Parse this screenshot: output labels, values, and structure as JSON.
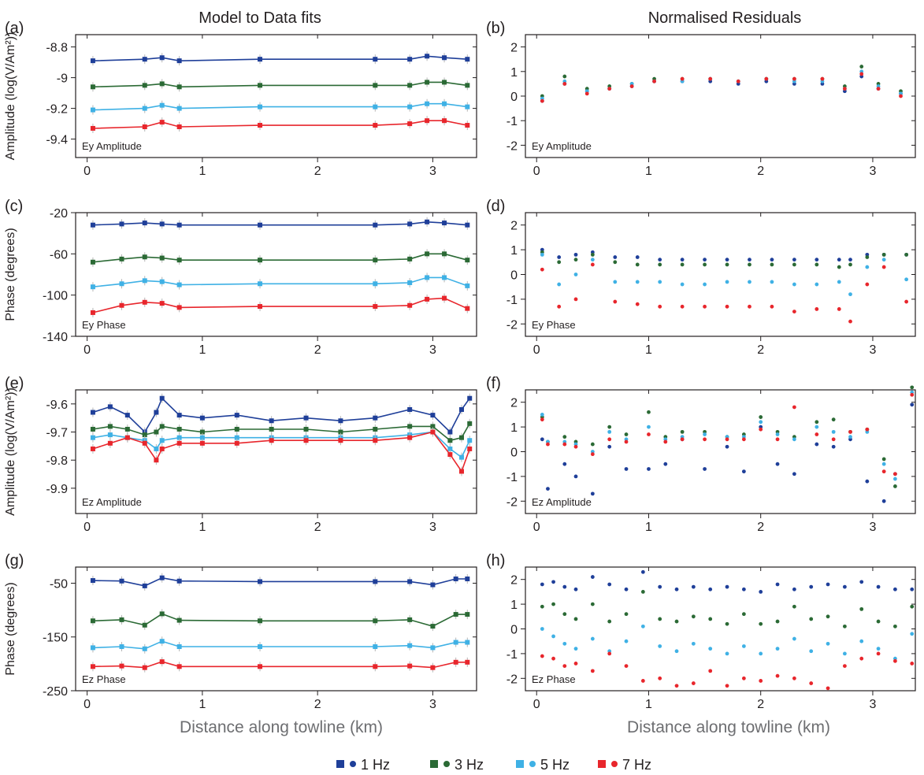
{
  "colors": {
    "1 Hz": "#1f3f99",
    "3 Hz": "#2b6a35",
    "5 Hz": "#3fb1e5",
    "7 Hz": "#e8262c",
    "error_bar": "#b5b5b5",
    "axis": "#231f20"
  },
  "column_titles": {
    "left": "Model to Data fits",
    "right": "Normalised Residuals"
  },
  "xlabel": "Distance along towline (km)",
  "legend": [
    {
      "name": "1 Hz",
      "color": "#1f3f99"
    },
    {
      "name": "3 Hz",
      "color": "#2b6a35"
    },
    {
      "name": "5 Hz",
      "color": "#3fb1e5"
    },
    {
      "name": "7 Hz",
      "color": "#e8262c"
    }
  ],
  "chart_data": [
    {
      "id": "a",
      "panel_label": "(a)",
      "type": "line",
      "annotation": "Ey Amplitude",
      "ylabel": "Amplitude (log(V/Am²))",
      "xlim": [
        -0.1,
        3.38
      ],
      "ylim": [
        -9.52,
        -8.72
      ],
      "yticks": [
        -8.8,
        -9,
        -9.2,
        -9.4
      ],
      "xticks": [
        0,
        1,
        2,
        3
      ],
      "x": [
        0.05,
        0.5,
        0.65,
        0.8,
        1.5,
        2.5,
        2.8,
        2.95,
        3.1,
        3.3
      ],
      "series": [
        {
          "name": "1 Hz",
          "values": [
            -8.89,
            -8.88,
            -8.87,
            -8.89,
            -8.88,
            -8.88,
            -8.88,
            -8.86,
            -8.87,
            -8.88
          ]
        },
        {
          "name": "3 Hz",
          "values": [
            -9.06,
            -9.05,
            -9.04,
            -9.06,
            -9.05,
            -9.05,
            -9.05,
            -9.03,
            -9.03,
            -9.05
          ]
        },
        {
          "name": "5 Hz",
          "values": [
            -9.21,
            -9.2,
            -9.18,
            -9.2,
            -9.19,
            -9.19,
            -9.19,
            -9.17,
            -9.17,
            -9.19
          ]
        },
        {
          "name": "7 Hz",
          "values": [
            -9.33,
            -9.32,
            -9.29,
            -9.32,
            -9.31,
            -9.31,
            -9.3,
            -9.28,
            -9.28,
            -9.31
          ]
        }
      ]
    },
    {
      "id": "b",
      "panel_label": "(b)",
      "type": "scatter",
      "annotation": "Ey Amplitude",
      "xlim": [
        -0.1,
        3.38
      ],
      "ylim": [
        -2.5,
        2.5
      ],
      "yticks": [
        2,
        1,
        0,
        -1,
        -2
      ],
      "xticks": [
        0,
        1,
        2,
        3
      ],
      "x": [
        0.05,
        0.25,
        0.45,
        0.65,
        0.85,
        1.05,
        1.3,
        1.55,
        1.8,
        2.05,
        2.3,
        2.55,
        2.75,
        2.9,
        3.05,
        3.25
      ],
      "series": [
        {
          "name": "1 Hz",
          "values": [
            -0.2,
            0.5,
            0.2,
            0.3,
            0.4,
            0.6,
            0.6,
            0.6,
            0.5,
            0.6,
            0.5,
            0.5,
            0.2,
            0.8,
            0.3,
            0.1
          ]
        },
        {
          "name": "3 Hz",
          "values": [
            0.0,
            0.8,
            0.3,
            0.4,
            0.5,
            0.7,
            0.7,
            0.7,
            0.6,
            0.7,
            0.7,
            0.7,
            0.4,
            1.2,
            0.5,
            0.2
          ]
        },
        {
          "name": "5 Hz",
          "values": [
            -0.1,
            0.6,
            0.2,
            0.3,
            0.5,
            0.6,
            0.6,
            0.7,
            0.6,
            0.7,
            0.6,
            0.6,
            0.3,
            1.0,
            0.4,
            0.1
          ]
        },
        {
          "name": "7 Hz",
          "values": [
            -0.2,
            0.5,
            0.1,
            0.3,
            0.4,
            0.6,
            0.7,
            0.7,
            0.6,
            0.7,
            0.7,
            0.7,
            0.3,
            0.9,
            0.3,
            0.0
          ]
        }
      ]
    },
    {
      "id": "c",
      "panel_label": "(c)",
      "type": "line",
      "annotation": "Ey Phase",
      "ylabel": "Phase (degrees)",
      "xlim": [
        -0.1,
        3.38
      ],
      "ylim": [
        -140,
        -20
      ],
      "yticks": [
        -20,
        -60,
        -100,
        -140
      ],
      "xticks": [
        0,
        1,
        2,
        3
      ],
      "x": [
        0.05,
        0.3,
        0.5,
        0.65,
        0.8,
        1.5,
        2.5,
        2.8,
        2.95,
        3.1,
        3.3
      ],
      "series": [
        {
          "name": "1 Hz",
          "values": [
            -32,
            -31,
            -30,
            -31,
            -32,
            -32,
            -32,
            -31,
            -29,
            -30,
            -32
          ]
        },
        {
          "name": "3 Hz",
          "values": [
            -68,
            -65,
            -63,
            -64,
            -66,
            -66,
            -66,
            -65,
            -60,
            -60,
            -66
          ]
        },
        {
          "name": "5 Hz",
          "values": [
            -92,
            -89,
            -86,
            -87,
            -90,
            -89,
            -89,
            -88,
            -83,
            -83,
            -91
          ]
        },
        {
          "name": "7 Hz",
          "values": [
            -117,
            -110,
            -107,
            -108,
            -112,
            -111,
            -111,
            -110,
            -104,
            -103,
            -113
          ]
        }
      ]
    },
    {
      "id": "d",
      "panel_label": "(d)",
      "type": "scatter",
      "annotation": "Ey Phase",
      "xlim": [
        -0.1,
        3.38
      ],
      "ylim": [
        -2.5,
        2.5
      ],
      "yticks": [
        2,
        1,
        0,
        -1,
        -2
      ],
      "xticks": [
        0,
        1,
        2,
        3
      ],
      "x": [
        0.05,
        0.2,
        0.35,
        0.5,
        0.7,
        0.9,
        1.1,
        1.3,
        1.5,
        1.7,
        1.9,
        2.1,
        2.3,
        2.5,
        2.7,
        2.8,
        2.95,
        3.1,
        3.3
      ],
      "series": [
        {
          "name": "1 Hz",
          "values": [
            1.0,
            0.7,
            0.8,
            0.9,
            0.7,
            0.7,
            0.6,
            0.6,
            0.6,
            0.6,
            0.6,
            0.6,
            0.6,
            0.6,
            0.6,
            0.6,
            0.8,
            0.8,
            0.8
          ]
        },
        {
          "name": "3 Hz",
          "values": [
            0.9,
            0.5,
            0.6,
            0.8,
            0.5,
            0.4,
            0.4,
            0.4,
            0.4,
            0.4,
            0.4,
            0.4,
            0.4,
            0.4,
            0.3,
            0.4,
            0.7,
            0.8,
            0.8
          ]
        },
        {
          "name": "5 Hz",
          "values": [
            0.8,
            -0.4,
            0.0,
            0.6,
            -0.3,
            -0.3,
            -0.3,
            -0.4,
            -0.4,
            -0.3,
            -0.3,
            -0.3,
            -0.4,
            -0.4,
            -0.3,
            -0.8,
            0.3,
            0.6,
            -0.2
          ]
        },
        {
          "name": "7 Hz",
          "values": [
            0.2,
            -1.3,
            -1.0,
            0.4,
            -1.1,
            -1.2,
            -1.3,
            -1.3,
            -1.3,
            -1.3,
            -1.3,
            -1.3,
            -1.5,
            -1.4,
            -1.4,
            -1.9,
            -0.4,
            0.3,
            -1.1
          ]
        }
      ]
    },
    {
      "id": "e",
      "panel_label": "(e)",
      "type": "line",
      "annotation": "Ez Amplitude",
      "ylabel": "Amplitude (log(V/Am²))",
      "xlim": [
        -0.1,
        3.38
      ],
      "ylim": [
        -9.99,
        -9.55
      ],
      "yticks": [
        -9.6,
        -9.7,
        -9.8,
        -9.9
      ],
      "xticks": [
        0,
        1,
        2,
        3
      ],
      "x": [
        0.05,
        0.2,
        0.35,
        0.5,
        0.6,
        0.65,
        0.8,
        1.0,
        1.3,
        1.6,
        1.9,
        2.2,
        2.5,
        2.8,
        3.0,
        3.15,
        3.25,
        3.32
      ],
      "series": [
        {
          "name": "1 Hz",
          "values": [
            -9.63,
            -9.61,
            -9.64,
            -9.7,
            -9.63,
            -9.58,
            -9.64,
            -9.65,
            -9.64,
            -9.66,
            -9.65,
            -9.66,
            -9.65,
            -9.62,
            -9.64,
            -9.7,
            -9.62,
            -9.58
          ]
        },
        {
          "name": "3 Hz",
          "values": [
            -9.69,
            -9.68,
            -9.69,
            -9.71,
            -9.7,
            -9.68,
            -9.69,
            -9.7,
            -9.69,
            -9.69,
            -9.69,
            -9.7,
            -9.69,
            -9.68,
            -9.68,
            -9.73,
            -9.72,
            -9.67
          ]
        },
        {
          "name": "5 Hz",
          "values": [
            -9.72,
            -9.71,
            -9.72,
            -9.73,
            -9.76,
            -9.73,
            -9.72,
            -9.72,
            -9.72,
            -9.72,
            -9.72,
            -9.72,
            -9.72,
            -9.71,
            -9.7,
            -9.76,
            -9.79,
            -9.73
          ]
        },
        {
          "name": "7 Hz",
          "values": [
            -9.76,
            -9.74,
            -9.72,
            -9.74,
            -9.8,
            -9.76,
            -9.74,
            -9.74,
            -9.74,
            -9.73,
            -9.73,
            -9.73,
            -9.73,
            -9.72,
            -9.7,
            -9.78,
            -9.84,
            -9.76
          ]
        }
      ]
    },
    {
      "id": "f",
      "panel_label": "(f)",
      "type": "scatter",
      "annotation": "Ez Amplitude",
      "xlim": [
        -0.1,
        3.38
      ],
      "ylim": [
        -2.5,
        2.5
      ],
      "yticks": [
        2,
        1,
        0,
        -1,
        -2
      ],
      "xticks": [
        0,
        1,
        2,
        3
      ],
      "x": [
        0.05,
        0.1,
        0.25,
        0.35,
        0.5,
        0.65,
        0.8,
        1.0,
        1.15,
        1.3,
        1.5,
        1.7,
        1.85,
        2.0,
        2.15,
        2.3,
        2.5,
        2.65,
        2.8,
        2.95,
        3.1,
        3.2,
        3.35
      ],
      "series": [
        {
          "name": "1 Hz",
          "values": [
            0.5,
            -1.5,
            -0.5,
            -1.0,
            -1.7,
            0.2,
            -0.7,
            -0.7,
            -0.5,
            0.5,
            -0.7,
            0.2,
            -0.8,
            1.0,
            -0.5,
            -0.9,
            0.3,
            0.2,
            0.5,
            -1.2,
            -2.0,
            -0.9,
            1.9
          ]
        },
        {
          "name": "3 Hz",
          "values": [
            1.4,
            0.4,
            0.6,
            0.4,
            0.3,
            1.0,
            0.7,
            1.6,
            0.6,
            0.8,
            0.8,
            0.6,
            0.7,
            1.4,
            0.8,
            0.6,
            1.2,
            1.3,
            0.8,
            0.9,
            -0.3,
            -1.4,
            2.6
          ]
        },
        {
          "name": "5 Hz",
          "values": [
            1.5,
            0.4,
            0.4,
            0.3,
            0.0,
            0.8,
            0.5,
            1.0,
            0.5,
            0.6,
            0.7,
            0.6,
            0.6,
            1.2,
            0.7,
            0.5,
            1.0,
            0.8,
            0.6,
            0.8,
            -0.5,
            -1.1,
            2.4
          ]
        },
        {
          "name": "7 Hz",
          "values": [
            1.3,
            0.3,
            0.3,
            0.2,
            -0.1,
            0.5,
            0.4,
            0.7,
            0.4,
            0.5,
            0.5,
            0.5,
            0.5,
            0.9,
            0.5,
            1.8,
            0.7,
            0.5,
            0.8,
            0.9,
            -0.8,
            -0.9,
            2.3
          ]
        }
      ]
    },
    {
      "id": "g",
      "panel_label": "(g)",
      "type": "line",
      "annotation": "Ez Phase",
      "ylabel": "Phase (degrees)",
      "xlim": [
        -0.1,
        3.38
      ],
      "ylim": [
        -250,
        -20
      ],
      "yticks": [
        -50,
        -150,
        -250
      ],
      "xticks": [
        0,
        1,
        2,
        3
      ],
      "x": [
        0.05,
        0.3,
        0.5,
        0.65,
        0.8,
        1.5,
        2.5,
        2.8,
        3.0,
        3.2,
        3.3
      ],
      "series": [
        {
          "name": "1 Hz",
          "values": [
            -45,
            -46,
            -55,
            -40,
            -46,
            -47,
            -47,
            -47,
            -53,
            -42,
            -42
          ]
        },
        {
          "name": "3 Hz",
          "values": [
            -120,
            -118,
            -128,
            -107,
            -119,
            -120,
            -120,
            -118,
            -130,
            -108,
            -108
          ]
        },
        {
          "name": "5 Hz",
          "values": [
            -170,
            -168,
            -172,
            -158,
            -168,
            -168,
            -168,
            -166,
            -170,
            -160,
            -160
          ]
        },
        {
          "name": "7 Hz",
          "values": [
            -205,
            -204,
            -207,
            -196,
            -205,
            -205,
            -205,
            -204,
            -207,
            -197,
            -197
          ]
        }
      ]
    },
    {
      "id": "h",
      "panel_label": "(h)",
      "type": "scatter",
      "annotation": "Ez Phase",
      "xlim": [
        -0.1,
        3.38
      ],
      "ylim": [
        -2.5,
        2.5
      ],
      "yticks": [
        2,
        1,
        0,
        -1,
        -2
      ],
      "xticks": [
        0,
        1,
        2,
        3
      ],
      "x": [
        0.05,
        0.15,
        0.25,
        0.35,
        0.5,
        0.65,
        0.8,
        0.95,
        1.1,
        1.25,
        1.4,
        1.55,
        1.7,
        1.85,
        2.0,
        2.15,
        2.3,
        2.45,
        2.6,
        2.75,
        2.9,
        3.05,
        3.2,
        3.35
      ],
      "series": [
        {
          "name": "1 Hz",
          "values": [
            1.8,
            1.9,
            1.7,
            1.6,
            2.1,
            1.8,
            1.6,
            2.3,
            1.7,
            1.6,
            1.7,
            1.6,
            1.7,
            1.6,
            1.5,
            1.8,
            1.6,
            1.7,
            1.8,
            1.7,
            1.9,
            1.7,
            1.6,
            1.6
          ]
        },
        {
          "name": "3 Hz",
          "values": [
            0.9,
            1.0,
            0.6,
            0.4,
            1.0,
            0.3,
            0.6,
            1.5,
            0.4,
            0.3,
            0.5,
            0.4,
            0.2,
            0.6,
            0.2,
            0.3,
            0.9,
            0.4,
            0.5,
            0.1,
            0.8,
            0.3,
            0.1,
            0.9
          ]
        },
        {
          "name": "5 Hz",
          "values": [
            0.0,
            -0.3,
            -0.6,
            -0.8,
            -0.4,
            -0.9,
            -0.5,
            0.1,
            -0.7,
            -0.9,
            -0.6,
            -0.8,
            -1.0,
            -0.7,
            -1.0,
            -0.8,
            -0.4,
            -0.9,
            -0.6,
            -1.0,
            -0.5,
            -0.8,
            -1.2,
            -0.2
          ]
        },
        {
          "name": "7 Hz",
          "values": [
            -1.1,
            -1.2,
            -1.5,
            -1.4,
            -1.7,
            -1.0,
            -1.5,
            -2.1,
            -2.0,
            -2.3,
            -2.2,
            -1.7,
            -2.3,
            -2.0,
            -2.1,
            -1.9,
            -2.0,
            -2.2,
            -2.4,
            -1.5,
            -1.2,
            -1.0,
            -1.3,
            -1.4
          ]
        }
      ]
    }
  ]
}
